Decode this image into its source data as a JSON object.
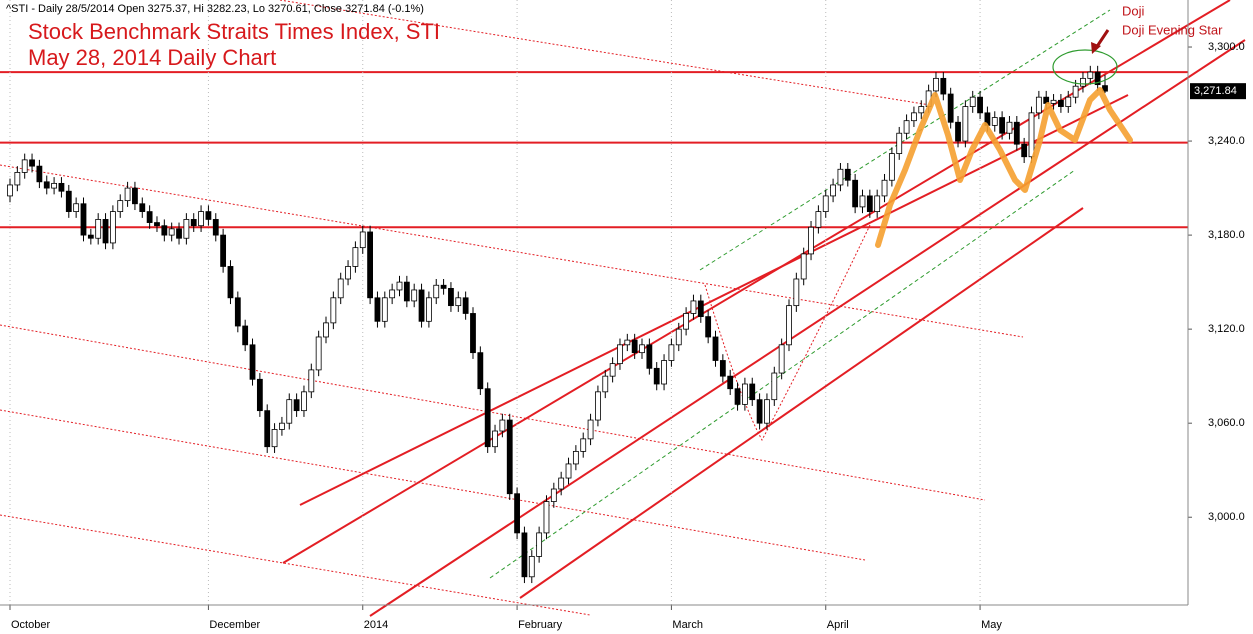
{
  "chart_data": {
    "type": "candlestick",
    "header": "^STI - Daily 28/5/2014 Open 3275.37, Hi 3282.23, Lo 3270.61, Close 3271.84 (-0.1%)",
    "title": "Stock Benchmark Straits Times Index, STI",
    "subtitle": "May 28, 2014 Daily Chart",
    "annotations": [
      "Doji",
      "Doji Evening Star"
    ],
    "last_price_label": "3,271.84",
    "up_color": "#ffffff",
    "down_color": "#000000",
    "level_color": "#e31e24",
    "levels": [
      3284,
      3239,
      3185
    ],
    "categories": [
      "October",
      null,
      null,
      null,
      null,
      null,
      null,
      null,
      null,
      null,
      null,
      null,
      null,
      null,
      null,
      null,
      null,
      null,
      null,
      null,
      null,
      null,
      null,
      null,
      null,
      null,
      null,
      "December",
      null,
      null,
      null,
      null,
      null,
      null,
      null,
      null,
      null,
      null,
      null,
      null,
      null,
      null,
      null,
      null,
      null,
      null,
      null,
      null,
      "2014",
      null,
      null,
      null,
      null,
      null,
      null,
      null,
      null,
      null,
      null,
      null,
      null,
      null,
      null,
      null,
      null,
      null,
      null,
      null,
      null,
      "February",
      null,
      null,
      null,
      null,
      null,
      null,
      null,
      null,
      null,
      null,
      null,
      null,
      null,
      null,
      null,
      null,
      null,
      null,
      null,
      null,
      "March",
      null,
      null,
      null,
      null,
      null,
      null,
      null,
      null,
      null,
      null,
      null,
      null,
      null,
      null,
      null,
      null,
      null,
      null,
      null,
      null,
      "April",
      null,
      null,
      null,
      null,
      null,
      null,
      null,
      null,
      null,
      null,
      null,
      null,
      null,
      null,
      null,
      null,
      null,
      null,
      null,
      null,
      "May",
      null,
      null,
      null,
      null,
      null,
      null,
      null,
      null,
      null,
      null,
      null,
      null,
      null,
      null,
      null,
      null,
      null
    ],
    "open": [
      3205,
      3212,
      3220,
      3228,
      3224,
      3214,
      3210,
      3213,
      3208,
      3195,
      3200,
      3180,
      3178,
      3190,
      3175,
      3195,
      3202,
      3210,
      3200,
      3195,
      3188,
      3186,
      3180,
      3184,
      3178,
      3190,
      3186,
      3195,
      3190,
      3180,
      3160,
      3140,
      3122,
      3110,
      3088,
      3068,
      3045,
      3056,
      3060,
      3075,
      3068,
      3080,
      3094,
      3115,
      3124,
      3140,
      3152,
      3160,
      3172,
      3182,
      3140,
      3125,
      3140,
      3145,
      3150,
      3138,
      3145,
      3125,
      3140,
      3148,
      3146,
      3135,
      3140,
      3130,
      3105,
      3082,
      3045,
      3055,
      3062,
      3015,
      2990,
      2962,
      2975,
      2990,
      3010,
      3018,
      3025,
      3034,
      3042,
      3050,
      3062,
      3080,
      3090,
      3098,
      3110,
      3113,
      3105,
      3110,
      3095,
      3085,
      3100,
      3110,
      3120,
      3130,
      3138,
      3128,
      3115,
      3100,
      3090,
      3082,
      3072,
      3085,
      3075,
      3060,
      3075,
      3092,
      3110,
      3135,
      3152,
      3168,
      3185,
      3195,
      3205,
      3212,
      3222,
      3215,
      3198,
      3205,
      3195,
      3205,
      3215,
      3232,
      3245,
      3253,
      3258,
      3262,
      3272,
      3280,
      3270,
      3252,
      3240,
      3262,
      3268,
      3258,
      3250,
      3255,
      3245,
      3252,
      3238,
      3230,
      3258,
      3268,
      3264,
      3266,
      3262,
      3268,
      3275,
      3280,
      3284,
      3275.37
    ],
    "high": [
      3216,
      3224,
      3232,
      3232,
      3228,
      3218,
      3217,
      3217,
      3212,
      3204,
      3204,
      3184,
      3194,
      3194,
      3199,
      3206,
      3214,
      3214,
      3204,
      3199,
      3192,
      3190,
      3188,
      3188,
      3194,
      3194,
      3199,
      3199,
      3194,
      3184,
      3164,
      3144,
      3126,
      3114,
      3092,
      3072,
      3060,
      3064,
      3079,
      3079,
      3084,
      3098,
      3119,
      3128,
      3144,
      3156,
      3164,
      3176,
      3186,
      3186,
      3144,
      3144,
      3149,
      3154,
      3154,
      3149,
      3149,
      3144,
      3152,
      3152,
      3150,
      3144,
      3144,
      3134,
      3109,
      3086,
      3059,
      3066,
      3066,
      3019,
      2994,
      2979,
      2994,
      3014,
      3022,
      3029,
      3038,
      3046,
      3054,
      3066,
      3084,
      3094,
      3102,
      3114,
      3117,
      3117,
      3114,
      3114,
      3099,
      3104,
      3114,
      3124,
      3134,
      3142,
      3142,
      3132,
      3119,
      3104,
      3094,
      3086,
      3089,
      3089,
      3079,
      3079,
      3096,
      3114,
      3139,
      3156,
      3172,
      3189,
      3199,
      3209,
      3216,
      3226,
      3226,
      3219,
      3209,
      3209,
      3209,
      3219,
      3236,
      3249,
      3257,
      3262,
      3266,
      3276,
      3284,
      3284,
      3274,
      3256,
      3266,
      3272,
      3272,
      3262,
      3259,
      3259,
      3256,
      3256,
      3242,
      3262,
      3272,
      3272,
      3270,
      3270,
      3272,
      3279,
      3284,
      3288,
      3288,
      3282.23
    ],
    "low": [
      3201,
      3208,
      3216,
      3220,
      3210,
      3206,
      3206,
      3204,
      3191,
      3191,
      3176,
      3174,
      3174,
      3171,
      3171,
      3191,
      3198,
      3196,
      3191,
      3184,
      3182,
      3176,
      3176,
      3174,
      3174,
      3182,
      3182,
      3186,
      3176,
      3156,
      3136,
      3118,
      3106,
      3084,
      3064,
      3041,
      3041,
      3052,
      3056,
      3064,
      3064,
      3076,
      3090,
      3111,
      3120,
      3136,
      3148,
      3156,
      3168,
      3136,
      3121,
      3121,
      3136,
      3141,
      3134,
      3134,
      3121,
      3121,
      3136,
      3142,
      3131,
      3131,
      3126,
      3101,
      3078,
      3041,
      3041,
      3051,
      3011,
      2986,
      2958,
      2958,
      2971,
      2986,
      3006,
      3014,
      3021,
      3030,
      3038,
      3046,
      3058,
      3076,
      3086,
      3094,
      3106,
      3101,
      3101,
      3091,
      3081,
      3081,
      3096,
      3106,
      3116,
      3126,
      3124,
      3111,
      3096,
      3086,
      3078,
      3068,
      3068,
      3071,
      3056,
      3056,
      3071,
      3088,
      3106,
      3131,
      3148,
      3164,
      3181,
      3191,
      3201,
      3208,
      3211,
      3194,
      3194,
      3191,
      3191,
      3201,
      3211,
      3228,
      3241,
      3249,
      3254,
      3258,
      3268,
      3266,
      3248,
      3236,
      3236,
      3258,
      3254,
      3246,
      3246,
      3241,
      3241,
      3234,
      3226,
      3226,
      3254,
      3260,
      3260,
      3258,
      3258,
      3264,
      3271,
      3276,
      3272,
      3270.61
    ],
    "close": [
      3212,
      3220,
      3228,
      3224,
      3214,
      3210,
      3213,
      3208,
      3195,
      3200,
      3180,
      3178,
      3190,
      3175,
      3195,
      3202,
      3210,
      3200,
      3195,
      3188,
      3186,
      3180,
      3184,
      3178,
      3190,
      3186,
      3195,
      3190,
      3180,
      3160,
      3140,
      3122,
      3110,
      3088,
      3068,
      3045,
      3056,
      3060,
      3075,
      3068,
      3080,
      3094,
      3115,
      3124,
      3140,
      3152,
      3160,
      3172,
      3182,
      3140,
      3125,
      3140,
      3145,
      3150,
      3138,
      3145,
      3125,
      3140,
      3148,
      3146,
      3135,
      3140,
      3130,
      3105,
      3082,
      3045,
      3055,
      3062,
      3015,
      2990,
      2962,
      2975,
      2990,
      3010,
      3018,
      3025,
      3034,
      3042,
      3050,
      3062,
      3080,
      3090,
      3098,
      3110,
      3113,
      3105,
      3110,
      3095,
      3085,
      3100,
      3110,
      3120,
      3130,
      3138,
      3128,
      3115,
      3100,
      3090,
      3082,
      3072,
      3085,
      3075,
      3060,
      3075,
      3092,
      3110,
      3135,
      3152,
      3168,
      3185,
      3195,
      3205,
      3212,
      3222,
      3215,
      3198,
      3205,
      3195,
      3205,
      3215,
      3232,
      3245,
      3253,
      3258,
      3262,
      3272,
      3280,
      3270,
      3252,
      3240,
      3262,
      3268,
      3258,
      3250,
      3255,
      3245,
      3252,
      3238,
      3230,
      3258,
      3268,
      3264,
      3266,
      3262,
      3268,
      3275,
      3280,
      3284,
      3276,
      3271.84
    ],
    "ylim": [
      2944,
      3330
    ],
    "yticks": [
      {
        "value": 3000,
        "label": "3,000.0"
      },
      {
        "value": 3060,
        "label": "3,060.0"
      },
      {
        "value": 3120,
        "label": "3,120.0"
      },
      {
        "value": 3180,
        "label": "3,180.0"
      },
      {
        "value": 3240,
        "label": "3,240.0"
      },
      {
        "value": 3300,
        "label": "3,300.0"
      }
    ]
  }
}
